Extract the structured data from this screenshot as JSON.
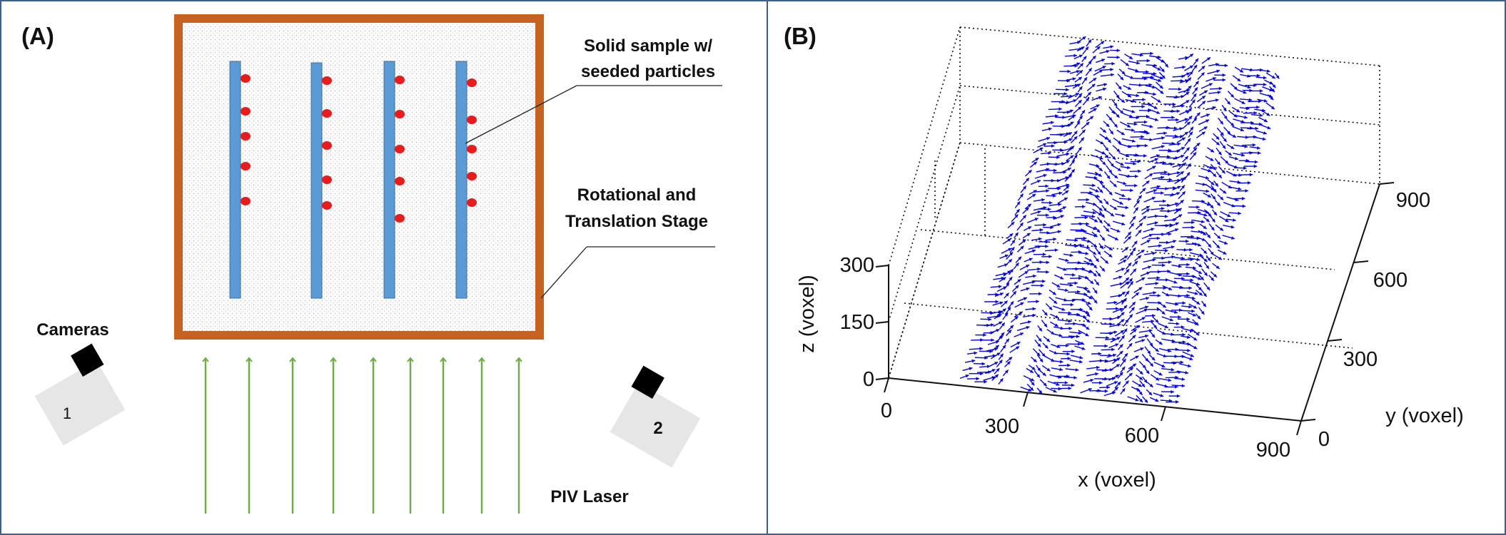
{
  "panel_a": {
    "label": "(A)",
    "sample_label_line1": "Solid sample w/",
    "sample_label_line2": "seeded particles",
    "stage_label_line1": "Rotational and",
    "stage_label_line2": "Translation Stage",
    "cameras_label": "Cameras",
    "camera1_number": "1",
    "camera2_number": "2",
    "laser_label": "PIV Laser",
    "colors": {
      "frame": "#c5621f",
      "strip": "#5b9bd5",
      "particle": "#e81c1c",
      "laser": "#70ad47",
      "camera_body": "#e6e6e6",
      "camera_lens": "#000000"
    }
  },
  "panel_b": {
    "label": "(B)",
    "x_label": "x (voxel)",
    "y_label": "y (voxel)",
    "z_label": "z (voxel)",
    "x_ticks": [
      "0",
      "300",
      "600",
      "900"
    ],
    "y_ticks": [
      "0",
      "300",
      "600",
      "900"
    ],
    "z_ticks": [
      "0",
      "150",
      "300"
    ],
    "vector_color": "#0000e0"
  }
}
